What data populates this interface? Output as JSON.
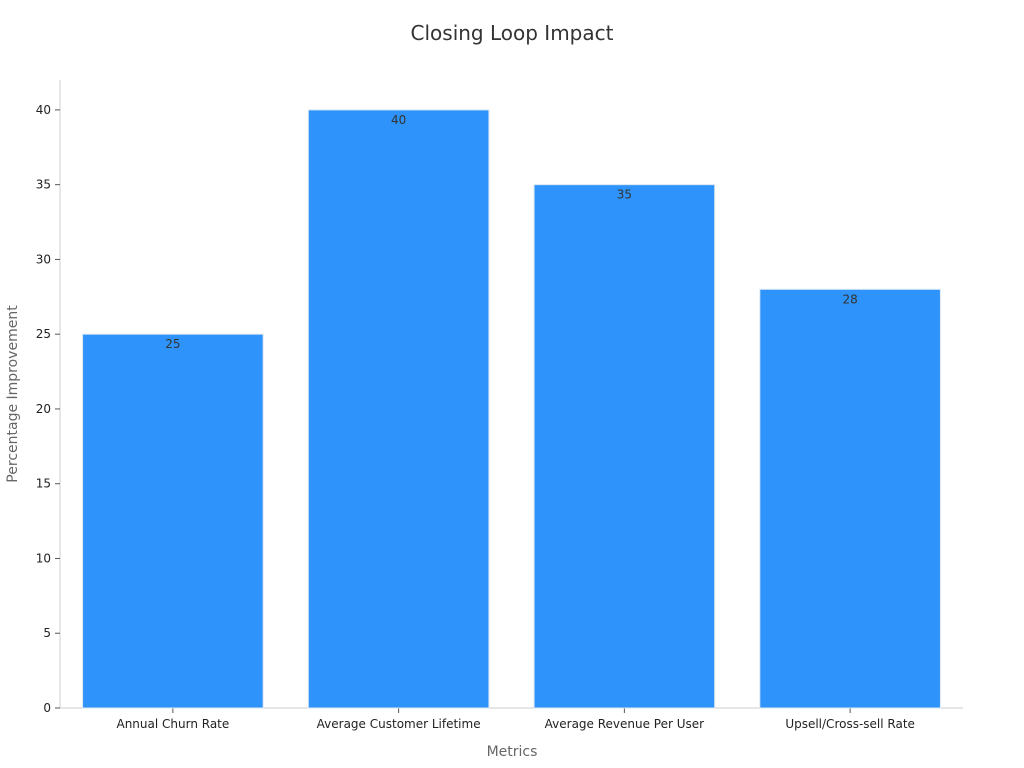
{
  "chart_data": {
    "type": "bar",
    "title": "Closing Loop Impact",
    "xlabel": "Metrics",
    "ylabel": "Percentage Improvement",
    "categories": [
      "Annual Churn Rate",
      "Average Customer Lifetime",
      "Average Revenue Per User",
      "Upsell/Cross-sell Rate"
    ],
    "values": [
      25,
      40,
      35,
      28
    ],
    "ylim": [
      0,
      42
    ],
    "yticks": [
      0,
      5,
      10,
      15,
      20,
      25,
      30,
      35,
      40
    ],
    "grid": false,
    "legend": "none",
    "bar_color": "#2e93fa",
    "bar_edge_color": "#d9e6f2",
    "axis_color": "#cccccc",
    "data_labels": true
  }
}
